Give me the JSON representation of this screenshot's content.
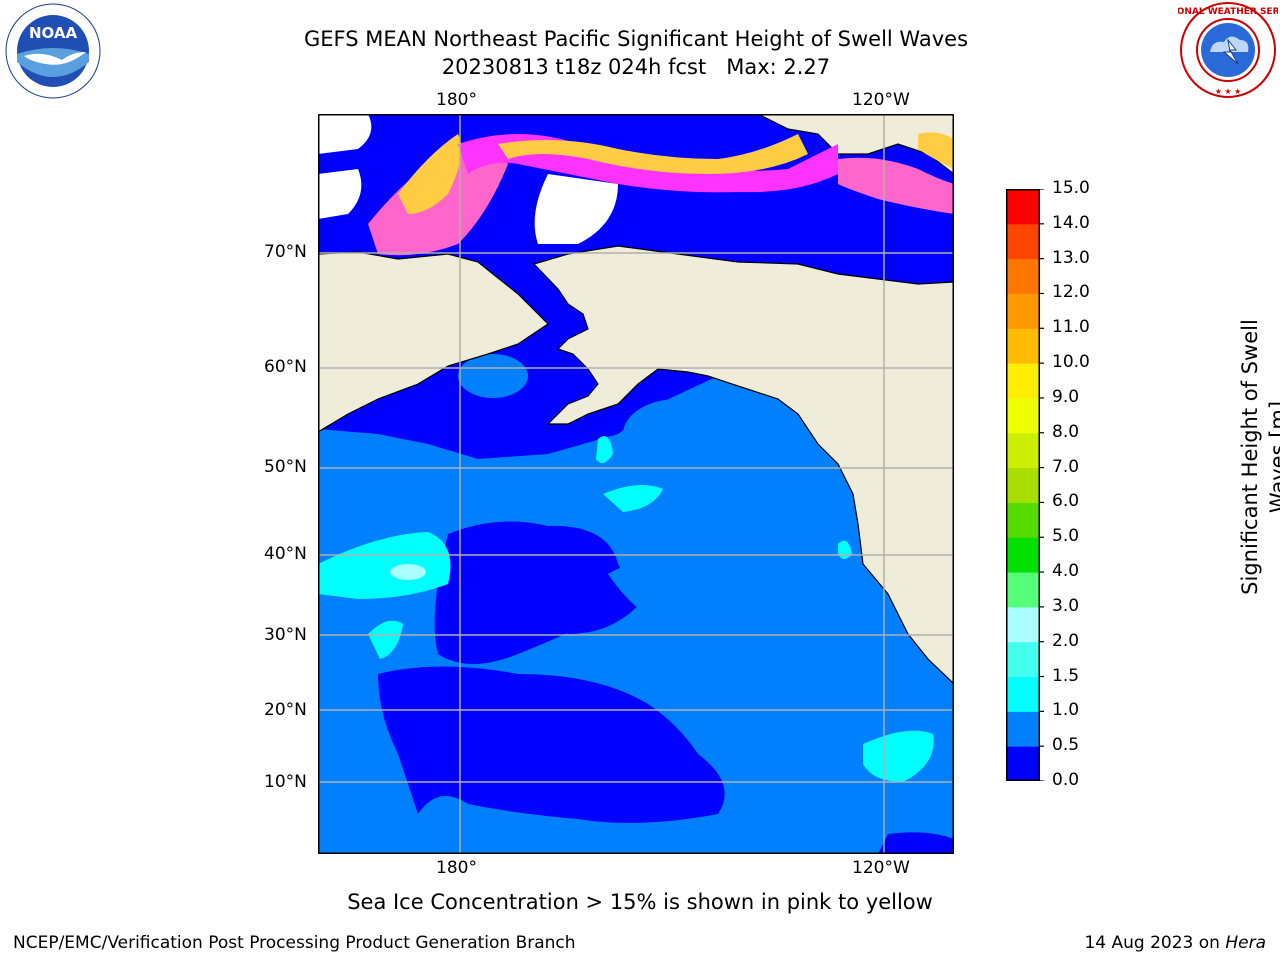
{
  "title_line1": "GEFS MEAN Northeast Pacific Significant Height of Swell Waves",
  "title_line2": "20230813 t18z 024h fcst   Max: 2.27",
  "lon_labels": [
    "180°",
    "120°W"
  ],
  "lat_labels": [
    "70°N",
    "60°N",
    "50°N",
    "40°N",
    "30°N",
    "20°N",
    "10°N"
  ],
  "colorbar": {
    "label": "Significant Height of Swell\nWaves [m]",
    "ticks": [
      "0.0",
      "0.5",
      "1.0",
      "1.5",
      "2.0",
      "3.0",
      "4.0",
      "5.0",
      "6.0",
      "7.0",
      "8.0",
      "9.0",
      "10.0",
      "11.0",
      "12.0",
      "13.0",
      "14.0",
      "15.0"
    ],
    "colors": [
      "#0000ff",
      "#0080ff",
      "#00ffff",
      "#44ffee",
      "#aaffff",
      "#55ff77",
      "#00e000",
      "#55dd00",
      "#aadd00",
      "#ccee00",
      "#eeff00",
      "#ffee00",
      "#ffbb00",
      "#ff9900",
      "#ff7700",
      "#ff4400",
      "#ff0000"
    ]
  },
  "ice_note": "Sea Ice Concentration > 15% is shown in pink to yellow",
  "footer_left": "NCEP/EMC/Verification Post Processing Product Generation Branch",
  "footer_right_prefix": "14 Aug 2023 on ",
  "footer_right_host": "Hera",
  "logos": {
    "noaa": "NOAA",
    "nws": "NATIONAL WEATHER SERVICE"
  },
  "map": {
    "land_color": "#efedd9",
    "ocean_deep_color": "#0000ff",
    "ocean_mid_color": "#0080ff",
    "ocean_light_color": "#00ffff",
    "ice_colors": [
      "#ff66cc",
      "#ff33ff",
      "#ffcc44"
    ],
    "grid_color": "#b0b0b0"
  }
}
